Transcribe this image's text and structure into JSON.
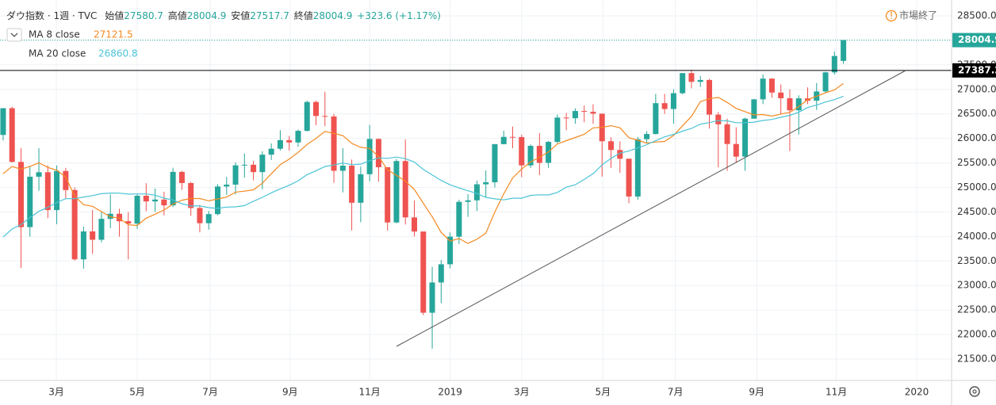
{
  "chart_data": {
    "type": "candlestick",
    "title": "ダウ指数 · 1週 · TVC",
    "ohlc_labels": [
      "始値",
      "高値",
      "安値",
      "終値"
    ],
    "change": "+323.6 (+1.17%)",
    "status": "市場終了",
    "up_color": "#26a69a",
    "down_color": "#ef5350",
    "open": [
      26071,
      26616,
      25521,
      24191,
      25219,
      25310,
      24538,
      25336,
      24947,
      23533,
      24103,
      23933,
      24360,
      24463,
      24311,
      24263,
      24831,
      24715,
      24753,
      24635,
      25317,
      25090,
      24581,
      24271,
      24456,
      25019,
      25058,
      25451,
      25463,
      25313,
      25669,
      25790,
      25965,
      25917,
      26155,
      26743,
      26458,
      26447,
      25340,
      25444,
      24688,
      25270,
      25989,
      25413,
      24286,
      25538,
      24389,
      24101,
      22445,
      23062,
      23433,
      23996,
      24706,
      24737,
      25064,
      25106,
      25883,
      26031,
      26026,
      25450,
      25849,
      25502,
      25929,
      26425,
      26412,
      26559,
      26543,
      26505,
      25942,
      25764,
      25586,
      24815,
      25984,
      26090,
      26719,
      26600,
      26922,
      27332,
      27154,
      27192,
      26485,
      26287,
      25886,
      25629,
      26403,
      26797,
      27219,
      26935,
      26820,
      26573,
      26817,
      26770,
      26958,
      27347,
      27580.7
    ],
    "high": [
      26617,
      26646,
      25800,
      25432,
      25800,
      25449,
      25449,
      25399,
      25000,
      24200,
      24541,
      24500,
      24858,
      24564,
      24499,
      24868,
      25087,
      24977,
      24913,
      25402,
      25339,
      25112,
      24643,
      24521,
      25065,
      25215,
      25511,
      25692,
      25543,
      25738,
      25897,
      26167,
      26049,
      26180,
      26769,
      26769,
      26951,
      26500,
      25801,
      25569,
      25425,
      26277,
      26000,
      25413,
      25581,
      25980,
      24734,
      24100,
      23381,
      23520,
      24080,
      24750,
      24863,
      25140,
      25346,
      25885,
      26157,
      26241,
      26075,
      25877,
      26109,
      25950,
      26487,
      26519,
      26615,
      26670,
      26696,
      26505,
      26024,
      25940,
      25515,
      26031,
      26150,
      26908,
      26908,
      27000,
      27333,
      27398,
      27273,
      27214,
      26538,
      26403,
      26226,
      26423,
      26807,
      27306,
      27227,
      27102,
      26998,
      26880,
      27040,
      27131,
      27360,
      27775,
      28004.9
    ],
    "low": [
      25960,
      25510,
      23360,
      23997,
      24932,
      24373,
      24250,
      24776,
      23509,
      23344,
      23645,
      23880,
      24168,
      23997,
      23531,
      24155,
      24517,
      24500,
      24430,
      24600,
      24950,
      24420,
      24084,
      24140,
      24430,
      24850,
      24860,
      25200,
      25146,
      24965,
      25560,
      25750,
      25750,
      25830,
      26140,
      26270,
      26250,
      25095,
      24899,
      24122,
      24290,
      25125,
      25118,
      24122,
      24268,
      24243,
      24000,
      22397,
      21712,
      22639,
      23350,
      23850,
      24400,
      24520,
      24800,
      25000,
      25880,
      25800,
      25210,
      25400,
      25250,
      25400,
      25900,
      26170,
      26300,
      26330,
      26300,
      25222,
      25400,
      25300,
      24680,
      24750,
      25900,
      26080,
      26500,
      26300,
      26900,
      27020,
      27050,
      26200,
      25410,
      25340,
      25500,
      25340,
      26400,
      26700,
      26830,
      26500,
      25743,
      26080,
      26700,
      26580,
      26930,
      27300,
      27517.7
    ],
    "close": [
      26616,
      25521,
      24191,
      25219,
      25310,
      24538,
      25336,
      24947,
      23533,
      24103,
      23933,
      24360,
      24463,
      24311,
      24263,
      24831,
      24715,
      24753,
      24635,
      25317,
      25090,
      24581,
      24271,
      24456,
      25019,
      25058,
      25451,
      25463,
      25313,
      25669,
      25790,
      25965,
      25917,
      26155,
      26743,
      26458,
      26447,
      25340,
      25444,
      24688,
      25270,
      25989,
      25413,
      24286,
      25538,
      24389,
      24101,
      22445,
      23062,
      23433,
      23996,
      24706,
      24737,
      25064,
      25106,
      25883,
      26031,
      26026,
      25450,
      25849,
      25502,
      25929,
      26425,
      26412,
      26559,
      26543,
      26505,
      25942,
      25764,
      25586,
      24815,
      25984,
      26090,
      26719,
      26600,
      26922,
      27332,
      27154,
      27192,
      26485,
      26287,
      25886,
      25629,
      26403,
      26797,
      27219,
      26935,
      26820,
      26573,
      26817,
      26770,
      26958,
      27347,
      27681,
      28004.9
    ],
    "series": [
      {
        "name": "MA 8 close",
        "color": "#f5891f",
        "values": [
          25279.8,
          25428.8,
          25371.3,
          25429.4,
          25503.3,
          25408.6,
          25350.3,
          25209.8,
          24824.4,
          24647.1,
          24614.9,
          24507.5,
          24401.6,
          24373.3,
          24239.1,
          24224.6,
          24372.4,
          24453.6,
          24541.4,
          24661.0,
          24739.4,
          24773.1,
          24774.1,
          24727.3,
          24765.3,
          24803.4,
          24905.4,
          24923.6,
          24951.5,
          25087.5,
          25277.4,
          25466.0,
          25578.3,
          25715.4,
          25876.9,
          26001.3,
          26143.0,
          26101.9,
          26058.6,
          25899.0,
          25818.1,
          25797.4,
          25631.1,
          25359.6,
          25246.0,
          25127.1,
          24959.3,
          24678.9,
          24402.9,
          24083.4,
          23906.3,
          23958.8,
          23858.6,
          23943.0,
          24068.6,
          24498.4,
          24869.5,
          25193.6,
          25375.4,
          25518.3,
          25613.9,
          25722.0,
          25886.9,
          25953.0,
          26019.0,
          26083.6,
          26215.5,
          26227.1,
          26259.9,
          26217.0,
          26015.8,
          25962.3,
          25903.6,
          25925.6,
          25937.5,
          26060.0,
          26256.0,
          26452.0,
          26749.1,
          26811.8,
          26836.4,
          26732.3,
          26610.9,
          26546.0,
          26479.1,
          26487.3,
          26455.1,
          26497.0,
          26532.8,
          26649.1,
          26791.8,
          26861.1,
          26929.9,
          26987.6,
          27121.5
        ]
      },
      {
        "name": "MA 20 close",
        "color": "#4cc4d6",
        "values": [
          23988.8,
          24151.5,
          24243.5,
          24384.2,
          24511.1,
          24594.4,
          24694.8,
          24770.4,
          24770.1,
          24804.2,
          24832.9,
          24873.0,
          24884.6,
          24883.7,
          24864.3,
          24868.2,
          24868.0,
          24840.9,
          24782.5,
          24744.8,
          24668.5,
          24621.5,
          24625.5,
          24587.3,
          24572.8,
          24598.8,
          24604.5,
          24630.3,
          24719.3,
          24797.6,
          24890.5,
          24970.7,
          25043.4,
          25135.6,
          25259.6,
          25341.0,
          25427.6,
          25456.9,
          25497.4,
          25465.9,
          25474.9,
          25545.3,
          25602.4,
          25593.9,
          25619.9,
          25586.4,
          25518.9,
          25368.0,
          25255.5,
          25143.7,
          25054.0,
          24991.0,
          24932.0,
          24877.5,
          24795.6,
          24766.9,
          24746.1,
          24780.4,
          24780.7,
          24838.7,
          24850.3,
          24847.3,
          24897.9,
          25004.2,
          25055.3,
          25163.0,
          25283.2,
          25458.0,
          25593.1,
          25700.8,
          25741.7,
          25805.6,
          25873.3,
          25956.0,
          26030.7,
          26082.7,
          26147.7,
          26204.1,
          26291.2,
          26323.0,
          26362.3,
          26360.1,
          26320.3,
          26319.9,
          26331.8,
          26365.6,
          26387.1,
          26431.0,
          26471.4,
          26533.0,
          26630.7,
          26679.4,
          26742.3,
          26790.4,
          26860.8
        ]
      }
    ],
    "hline": 27387.2,
    "ylim": [
      21064,
      28823
    ],
    "yticks": [
      {
        "value": 21500,
        "label": "21500.0"
      },
      {
        "value": 22000,
        "label": "22000.0"
      },
      {
        "value": 22500,
        "label": "22500.0"
      },
      {
        "value": 23000,
        "label": "23000.0"
      },
      {
        "value": 23500,
        "label": "23500.0"
      },
      {
        "value": 24000,
        "label": "24000.0"
      },
      {
        "value": 24500,
        "label": "24500.0"
      },
      {
        "value": 25000,
        "label": "25000.0"
      },
      {
        "value": 25500,
        "label": "25500.0"
      },
      {
        "value": 26000,
        "label": "26000.0"
      },
      {
        "value": 26500,
        "label": "26500.0"
      },
      {
        "value": 27000,
        "label": "27000.0"
      },
      {
        "value": 27500,
        "label": "27500.0"
      },
      {
        "value": 28000,
        "label": "28000.0"
      },
      {
        "value": 28500,
        "label": "28500.0"
      }
    ],
    "xlim": [
      -0.35,
      106.1
    ],
    "xticks": [
      {
        "value": 5.95,
        "label": "3月"
      },
      {
        "value": 15.0,
        "label": "5月"
      },
      {
        "value": 23.16,
        "label": "7月"
      },
      {
        "value": 32.1,
        "label": "9月"
      },
      {
        "value": 41.0,
        "label": "11月"
      },
      {
        "value": 50.0,
        "label": "2019"
      },
      {
        "value": 58.0,
        "label": "3月"
      },
      {
        "value": 67.1,
        "label": "5月"
      },
      {
        "value": 75.2,
        "label": "7月"
      },
      {
        "value": 84.3,
        "label": "9月"
      },
      {
        "value": 93.2,
        "label": "11月"
      },
      {
        "value": 102.2,
        "label": "2020"
      }
    ],
    "grid": true
  }
}
